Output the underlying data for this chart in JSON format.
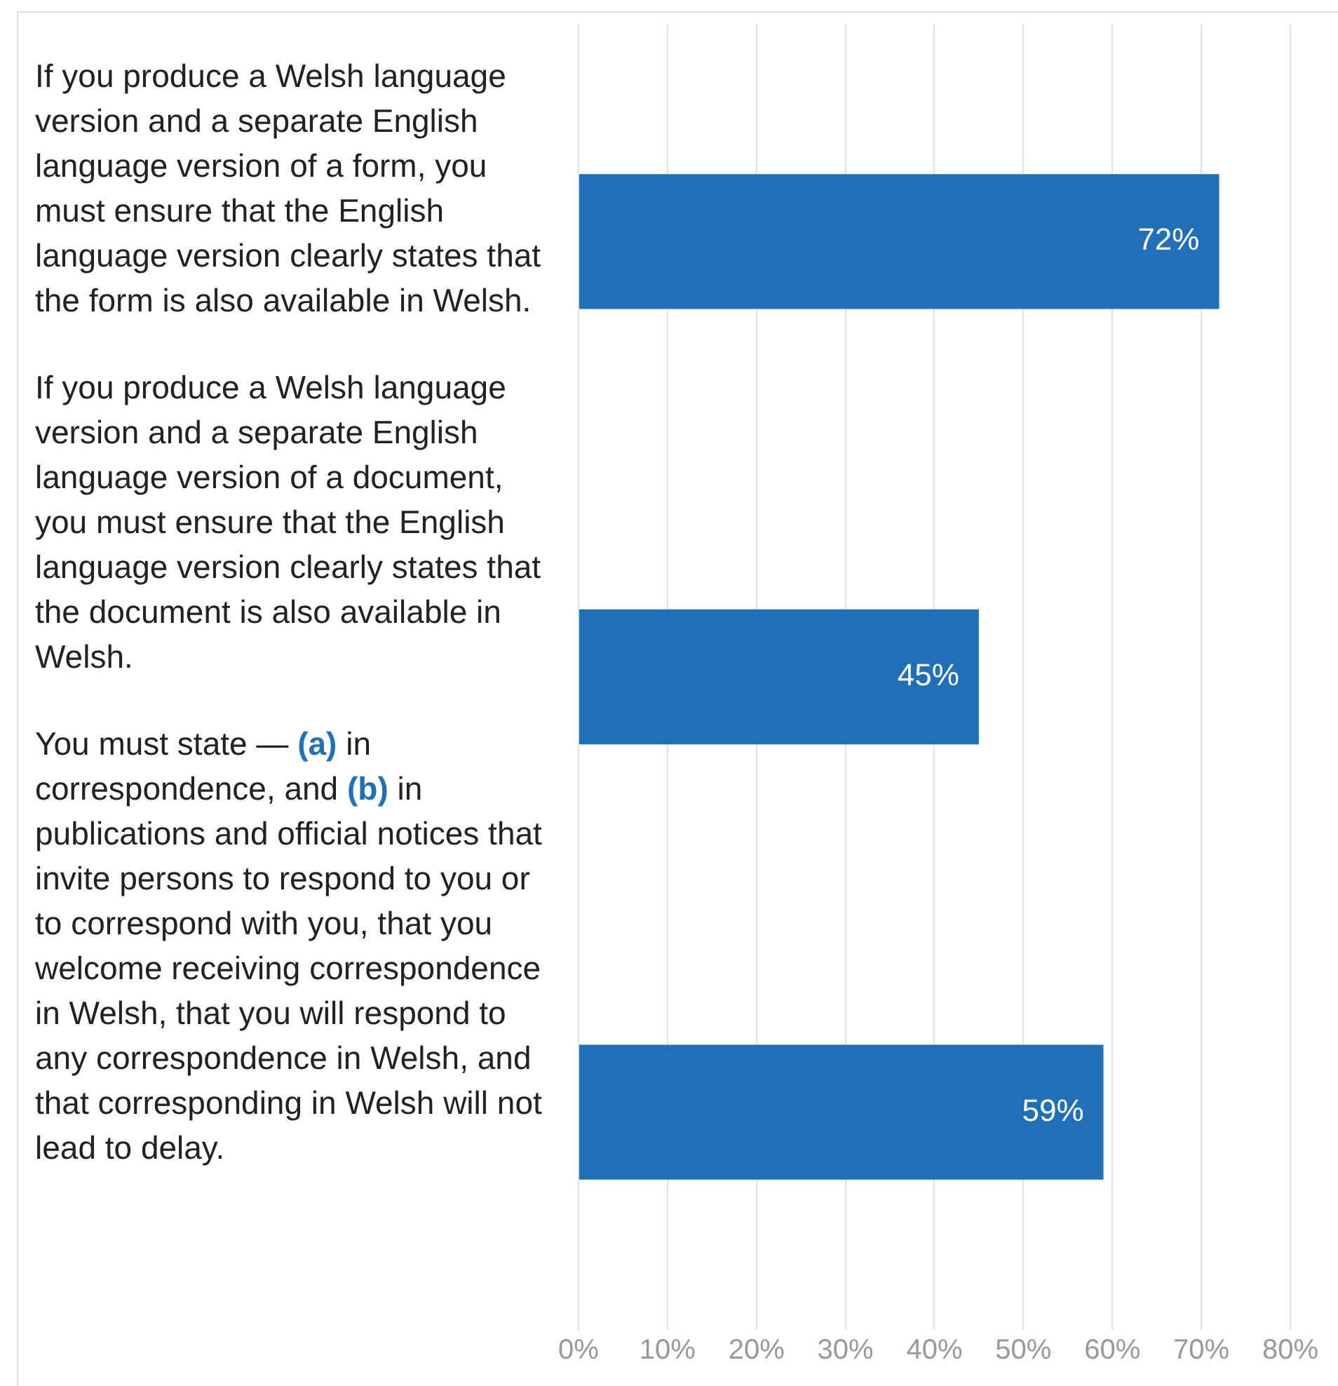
{
  "chart_data": {
    "type": "bar",
    "orientation": "horizontal",
    "categories": [
      "If you produce a Welsh language version and a separate English language version of a form, you must ensure that the English language version clearly states that the form is also available in Welsh.",
      "If you produce a Welsh language version and a separate English language version of a document, you must ensure that the English language version clearly states that the document is also available in Welsh.",
      "You must state — (a) in correspondence, and (b) in publications and official notices that invite persons to respond to you or to correspond with you, that you welcome receiving correspondence in Welsh, that you will respond to any correspondence in Welsh, and that corresponding in Welsh will not lead to delay."
    ],
    "values": [
      72,
      45,
      59
    ],
    "color": "#1f70b8",
    "xlim": [
      0,
      80
    ],
    "xticks": [
      {
        "value": 0,
        "label": "0%"
      },
      {
        "value": 10,
        "label": "10%"
      },
      {
        "value": 20,
        "label": "20%"
      },
      {
        "value": 30,
        "label": "30%"
      },
      {
        "value": 40,
        "label": "40%"
      },
      {
        "value": 50,
        "label": "50%"
      },
      {
        "value": 60,
        "label": "60%"
      },
      {
        "value": 70,
        "label": "70%"
      },
      {
        "value": 80,
        "label": "80%"
      }
    ],
    "value_labels": [
      "72%",
      "45%",
      "59%"
    ],
    "grid": "x",
    "legend": false
  }
}
